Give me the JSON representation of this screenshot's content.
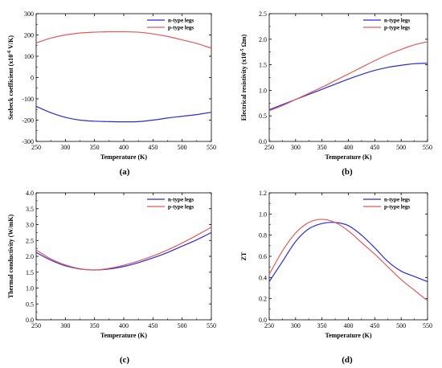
{
  "colors": {
    "n": "#2b2bd6",
    "p": "#e05a5a",
    "axis": "#000000"
  },
  "chart_data": [
    {
      "id": "a",
      "type": "line",
      "panel_label": "(a)",
      "xlabel": "Temperature (K)",
      "ylabel": "Seebeck coefficient (x10",
      "ylabel_sup": "-6",
      "ylabel_unit": " V/K)",
      "xlim": [
        250,
        550
      ],
      "ylim": [
        -300,
        300
      ],
      "xticks": [
        250,
        300,
        350,
        400,
        450,
        500,
        550
      ],
      "yticks": [
        -300,
        -200,
        -100,
        0,
        100,
        200,
        300
      ],
      "yfmt": 0,
      "legend": "top-right",
      "x": [
        250,
        275,
        300,
        325,
        350,
        375,
        400,
        425,
        450,
        475,
        500,
        525,
        550
      ],
      "series": [
        {
          "name": "n-type legs",
          "key": "n",
          "values": [
            -135,
            -165,
            -187,
            -200,
            -205,
            -207,
            -208,
            -207,
            -200,
            -190,
            -182,
            -174,
            -163
          ]
        },
        {
          "name": "p-type legs",
          "key": "p",
          "values": [
            162,
            185,
            200,
            209,
            213,
            215,
            215,
            213,
            205,
            193,
            177,
            160,
            138
          ]
        }
      ]
    },
    {
      "id": "b",
      "type": "line",
      "panel_label": "(b)",
      "xlabel": "Temperature (K)",
      "ylabel": "Electrical resistivity (x10",
      "ylabel_sup": "-5",
      "ylabel_unit": " Ωm)",
      "xlim": [
        250,
        550
      ],
      "ylim": [
        0,
        2.5
      ],
      "xticks": [
        250,
        300,
        350,
        400,
        450,
        500,
        550
      ],
      "yticks": [
        0,
        0.5,
        1.0,
        1.5,
        2.0,
        2.5
      ],
      "yfmt": 1,
      "legend": "top-right",
      "x": [
        250,
        275,
        300,
        325,
        350,
        375,
        400,
        425,
        450,
        475,
        500,
        525,
        550
      ],
      "series": [
        {
          "name": "n-type legs",
          "key": "n",
          "values": [
            0.62,
            0.72,
            0.82,
            0.92,
            1.02,
            1.12,
            1.22,
            1.31,
            1.39,
            1.45,
            1.49,
            1.52,
            1.53
          ]
        },
        {
          "name": "p-type legs",
          "key": "p",
          "values": [
            0.6,
            0.7,
            0.82,
            0.94,
            1.06,
            1.19,
            1.32,
            1.45,
            1.58,
            1.7,
            1.8,
            1.89,
            1.95
          ]
        }
      ]
    },
    {
      "id": "c",
      "type": "line",
      "panel_label": "(c)",
      "xlabel": "Temperature (K)",
      "ylabel": "Thermal conductivity (W/mK)",
      "ylabel_sup": "",
      "ylabel_unit": "",
      "xlim": [
        250,
        550
      ],
      "ylim": [
        0,
        4.0
      ],
      "xticks": [
        250,
        300,
        350,
        400,
        450,
        500,
        550
      ],
      "yticks": [
        0,
        0.5,
        1.0,
        1.5,
        2.0,
        2.5,
        3.0,
        3.5,
        4.0
      ],
      "yfmt": 1,
      "legend": "top-right",
      "x": [
        250,
        275,
        300,
        325,
        350,
        375,
        400,
        425,
        450,
        475,
        500,
        525,
        550
      ],
      "series": [
        {
          "name": "n-type legs",
          "key": "n",
          "values": [
            2.12,
            1.88,
            1.7,
            1.6,
            1.57,
            1.6,
            1.68,
            1.8,
            1.95,
            2.12,
            2.32,
            2.52,
            2.75
          ]
        },
        {
          "name": "p-type legs",
          "key": "p",
          "values": [
            2.2,
            1.92,
            1.73,
            1.61,
            1.57,
            1.62,
            1.72,
            1.85,
            2.01,
            2.2,
            2.42,
            2.66,
            2.92
          ]
        }
      ]
    },
    {
      "id": "d",
      "type": "line",
      "panel_label": "(d)",
      "xlabel": "Temperature (K)",
      "ylabel": "ZT",
      "ylabel_sup": "",
      "ylabel_unit": "",
      "xlim": [
        250,
        550
      ],
      "ylim": [
        0,
        1.2
      ],
      "xticks": [
        250,
        300,
        350,
        400,
        450,
        500,
        550
      ],
      "yticks": [
        0,
        0.2,
        0.4,
        0.6,
        0.8,
        1.0,
        1.2
      ],
      "yfmt": 1,
      "legend": "top-right",
      "x": [
        250,
        275,
        300,
        325,
        350,
        375,
        400,
        425,
        450,
        475,
        500,
        525,
        550
      ],
      "series": [
        {
          "name": "n-type legs",
          "key": "n",
          "values": [
            0.36,
            0.55,
            0.74,
            0.86,
            0.91,
            0.92,
            0.89,
            0.8,
            0.68,
            0.55,
            0.46,
            0.41,
            0.36
          ]
        },
        {
          "name": "p-type legs",
          "key": "p",
          "values": [
            0.43,
            0.65,
            0.82,
            0.92,
            0.95,
            0.92,
            0.84,
            0.73,
            0.62,
            0.5,
            0.38,
            0.28,
            0.18
          ]
        }
      ]
    }
  ]
}
